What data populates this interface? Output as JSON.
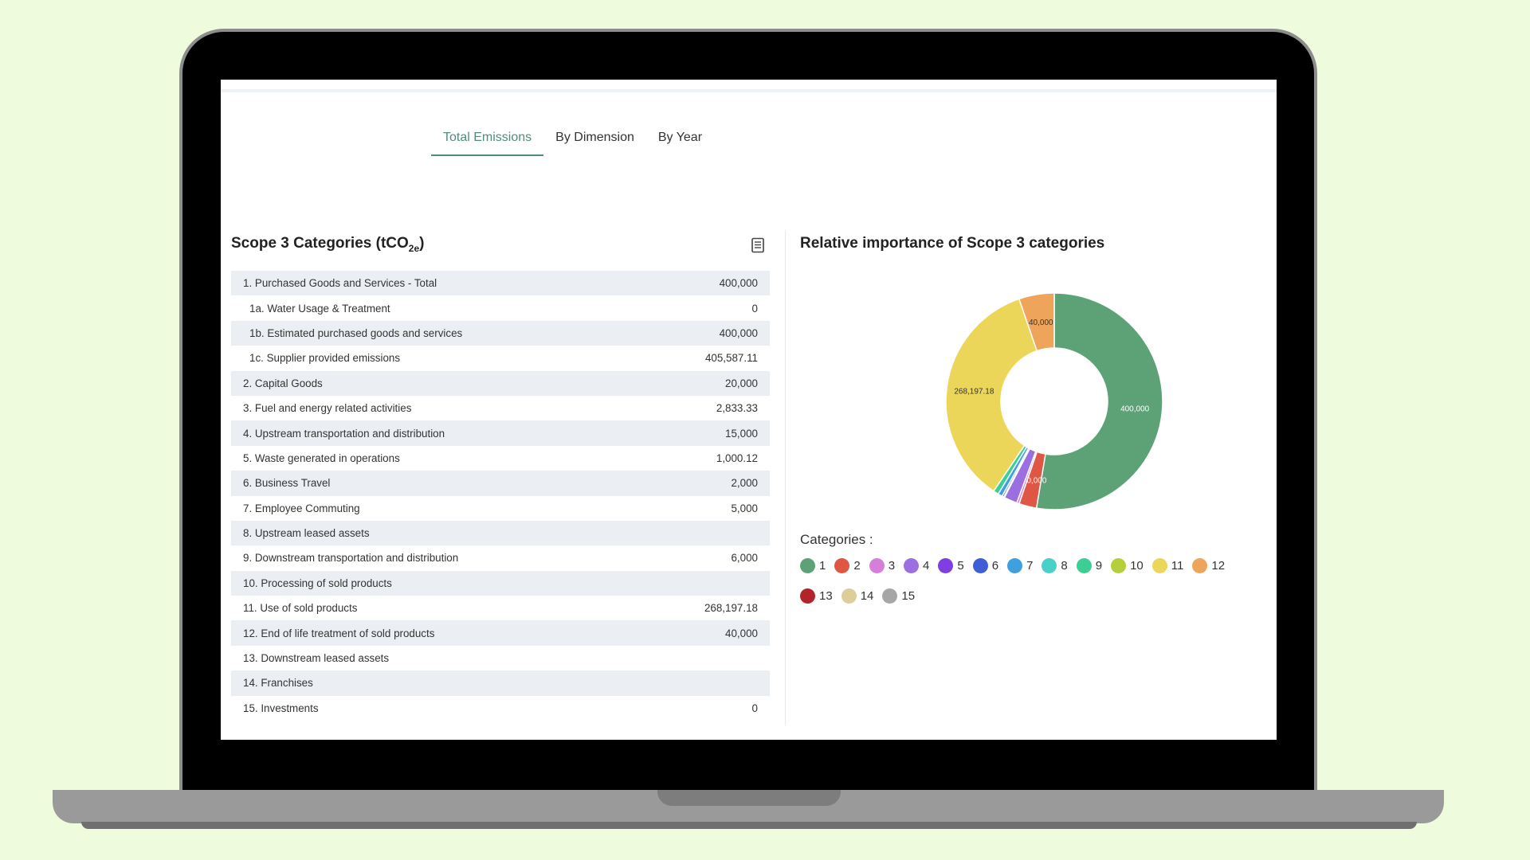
{
  "tabs": [
    "Total Emissions",
    "By Dimension",
    "By Year"
  ],
  "left_panel": {
    "title_prefix": "Scope 3 Categories (tCO",
    "title_sub": "2e",
    "title_suffix": ")",
    "icon": "document-icon",
    "rows": [
      {
        "label": "1. Purchased Goods and Services - Total",
        "value": "400,000",
        "sub": false
      },
      {
        "label": "1a. Water Usage & Treatment",
        "value": "0",
        "sub": true
      },
      {
        "label": "1b. Estimated purchased goods and services",
        "value": "400,000",
        "sub": true
      },
      {
        "label": "1c. Supplier provided emissions",
        "value": "405,587.11",
        "sub": true
      },
      {
        "label": "2. Capital Goods",
        "value": "20,000",
        "sub": false
      },
      {
        "label": "3. Fuel and energy related activities",
        "value": "2,833.33",
        "sub": false
      },
      {
        "label": "4. Upstream transportation and distribution",
        "value": "15,000",
        "sub": false
      },
      {
        "label": "5. Waste generated in operations",
        "value": "1,000.12",
        "sub": false
      },
      {
        "label": "6. Business Travel",
        "value": "2,000",
        "sub": false
      },
      {
        "label": "7. Employee Commuting",
        "value": "5,000",
        "sub": false
      },
      {
        "label": "8. Upstream leased assets",
        "value": "",
        "sub": false
      },
      {
        "label": "9. Downstream transportation and distribution",
        "value": "6,000",
        "sub": false
      },
      {
        "label": "10. Processing of sold products",
        "value": "",
        "sub": false
      },
      {
        "label": "11. Use of sold products",
        "value": "268,197.18",
        "sub": false
      },
      {
        "label": "12. End of life treatment of sold products",
        "value": "40,000",
        "sub": false
      },
      {
        "label": "13. Downstream leased assets",
        "value": "",
        "sub": false
      },
      {
        "label": "14. Franchises",
        "value": "",
        "sub": false
      },
      {
        "label": "15. Investments",
        "value": "0",
        "sub": false
      }
    ]
  },
  "right_panel": {
    "title": "Relative importance of Scope 3 categories",
    "legend_title": "Categories :"
  },
  "chart_data": {
    "type": "pie",
    "title": "Relative importance of Scope 3 categories",
    "labels": [
      "1",
      "2",
      "3",
      "4",
      "5",
      "6",
      "7",
      "8",
      "9",
      "10",
      "11",
      "12",
      "13",
      "14",
      "15"
    ],
    "values": [
      400000,
      20000,
      2833.33,
      15000,
      1000.12,
      2000,
      5000,
      0,
      6000,
      0,
      268197.18,
      40000,
      0,
      0,
      0
    ],
    "data_labels": [
      "400,000",
      "20,000",
      "",
      "",
      "",
      "",
      "",
      "",
      "",
      "",
      "268,197.18",
      "40,000",
      "",
      "",
      ""
    ],
    "colors": [
      "#5da177",
      "#df5645",
      "#d67fd8",
      "#9b6fe0",
      "#7e3ee2",
      "#3d5ed6",
      "#3fa0e0",
      "#48d1c8",
      "#3ccf94",
      "#b4cf3a",
      "#ecd65a",
      "#eea45a",
      "#b3232a",
      "#dccd9a",
      "#a6a6a6"
    ],
    "donut": true,
    "legend_position": "bottom"
  }
}
